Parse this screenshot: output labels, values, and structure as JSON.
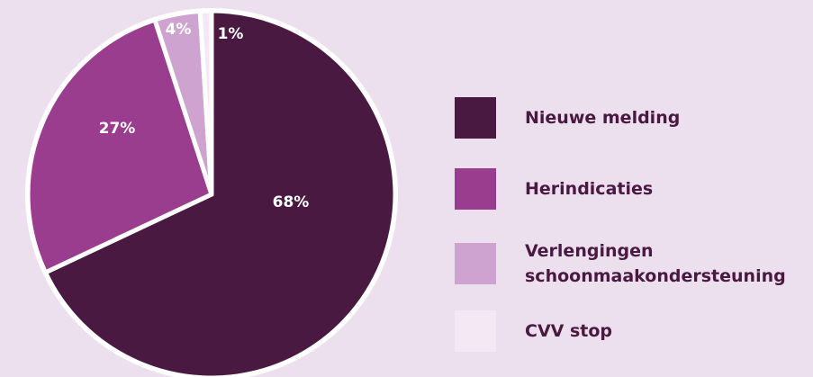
{
  "chart_data": {
    "type": "pie",
    "categories": [
      "Nieuwe melding",
      "Herindicaties",
      "Verlengingen schoonmaakondersteuning",
      "CVV stop"
    ],
    "values": [
      68,
      27,
      4,
      1
    ],
    "value_labels": [
      "68%",
      "27%",
      "4%",
      "1%"
    ],
    "colors": [
      "#4a1942",
      "#9b3d8f",
      "#cfa3cf",
      "#f5e8f5"
    ]
  }
}
